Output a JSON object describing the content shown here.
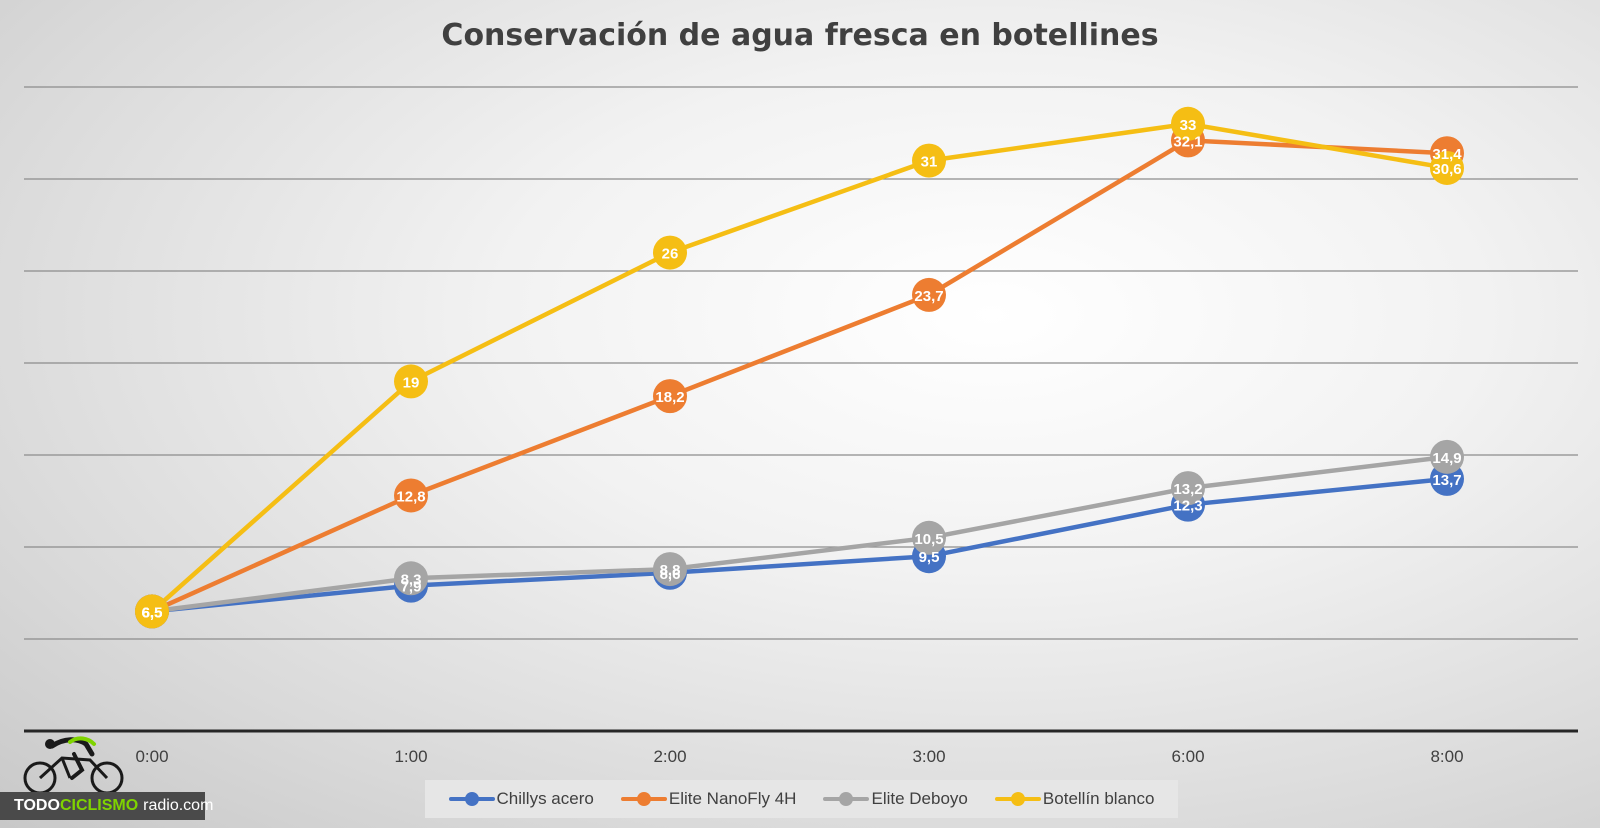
{
  "chart_data": {
    "type": "line",
    "title": "Conservación de agua fresca en botellines",
    "categories": [
      "0:00",
      "1:00",
      "2:00",
      "3:00",
      "6:00",
      "8:00"
    ],
    "ylim": [
      0,
      35
    ],
    "grid": true,
    "legend_position": "bottom",
    "series": [
      {
        "name": "Chillys acero",
        "color": "#4472c4",
        "values": [
          6.5,
          7.9,
          8.6,
          9.5,
          12.3,
          13.7
        ],
        "labels": [
          "6,5",
          "7,9",
          "8,6",
          "9,5",
          "12,3",
          "13,7"
        ]
      },
      {
        "name": "Elite NanoFly 4H",
        "color": "#ed7d31",
        "values": [
          6.5,
          12.8,
          18.2,
          23.7,
          32.1,
          31.4
        ],
        "labels": [
          "6,5",
          "12,8",
          "18,2",
          "23,7",
          "32,1",
          "31,4"
        ]
      },
      {
        "name": "Elite Deboyo",
        "color": "#a5a5a5",
        "values": [
          6.5,
          8.3,
          8.8,
          10.5,
          13.2,
          14.9
        ],
        "labels": [
          "6,5",
          "8,3",
          "8,8",
          "10,5",
          "13,2",
          "14,9"
        ]
      },
      {
        "name": "Botellín blanco",
        "color": "#f5be14",
        "values": [
          6.5,
          19,
          26,
          31,
          33,
          30.6
        ],
        "labels": [
          "6,5",
          "19",
          "26",
          "31",
          "33",
          "30,6"
        ]
      }
    ]
  },
  "logo": {
    "brand_part1": "TODO",
    "brand_part2": "CICLISMO",
    "brand_part3": "radio.com",
    "accent_color": "#7fd400"
  }
}
